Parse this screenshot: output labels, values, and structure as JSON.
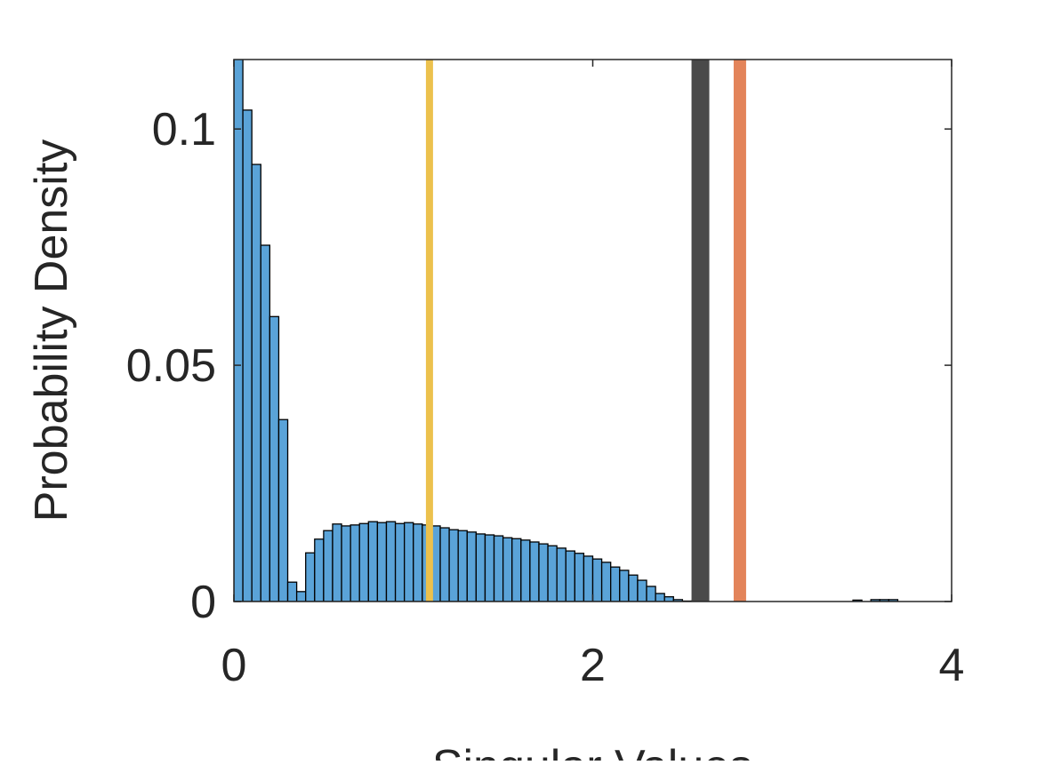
{
  "chart_data": {
    "type": "histogram",
    "xlabel": "Singular Values",
    "ylabel": "Probability Density",
    "bins": [
      0,
      0.05,
      0.1,
      0.15,
      0.2,
      0.25,
      0.3,
      0.35,
      0.4,
      0.45,
      0.5,
      0.55,
      0.6,
      0.65,
      0.7,
      0.75,
      0.8,
      0.85,
      0.9,
      0.95,
      1,
      1.05,
      1.1,
      1.15,
      1.2,
      1.25,
      1.3,
      1.35,
      1.4,
      1.45,
      1.5,
      1.55,
      1.6,
      1.65,
      1.7,
      1.75,
      1.8,
      1.85,
      1.9,
      1.95,
      2,
      2.05,
      2.1,
      2.15,
      2.2,
      2.25,
      2.3,
      2.35,
      2.4,
      2.45,
      2.5,
      2.55,
      2.6,
      2.65,
      2.7,
      2.75,
      2.8,
      2.85,
      2.9,
      2.95,
      3,
      3.05,
      3.1,
      3.15,
      3.2,
      3.25,
      3.3,
      3.35,
      3.4,
      3.45,
      3.5,
      3.55,
      3.6,
      3.65,
      3.7,
      3.75,
      3.8,
      3.85,
      3.9,
      3.95,
      4
    ],
    "values": [
      0.12,
      0.104,
      0.0925,
      0.0754,
      0.0603,
      0.0385,
      0.0041,
      0.0021,
      0.0103,
      0.0132,
      0.015,
      0.0164,
      0.016,
      0.0162,
      0.0165,
      0.0169,
      0.0167,
      0.0169,
      0.0165,
      0.0167,
      0.0164,
      0.0162,
      0.016,
      0.0156,
      0.0152,
      0.015,
      0.0147,
      0.0143,
      0.0141,
      0.0139,
      0.0135,
      0.0133,
      0.013,
      0.0126,
      0.0122,
      0.0118,
      0.0113,
      0.0107,
      0.0102,
      0.0096,
      0.009,
      0.0083,
      0.0073,
      0.0066,
      0.0056,
      0.0045,
      0.0032,
      0.0017,
      0.001,
      0.0004,
      0.0001,
      0.0001,
      0,
      0,
      0,
      0,
      0,
      0,
      0,
      0,
      0,
      0,
      0,
      0,
      0,
      0,
      0,
      0,
      0,
      0.0003,
      0,
      0.0004,
      0.0004,
      0.0004,
      0,
      0,
      0,
      0,
      0,
      0
    ],
    "color": "#5aa3d8",
    "vlines": [
      {
        "x": 1.09,
        "color": "#ecc14d"
      },
      {
        "x": 2.6,
        "color": "#4a4a4a"
      },
      {
        "x": 2.82,
        "color": "#e3845a"
      }
    ],
    "xlim": [
      0,
      4
    ],
    "xticks": [
      0,
      2,
      4
    ],
    "ylim": [
      0,
      0.1147
    ],
    "yticks": [
      0,
      0.05,
      0.1
    ]
  }
}
